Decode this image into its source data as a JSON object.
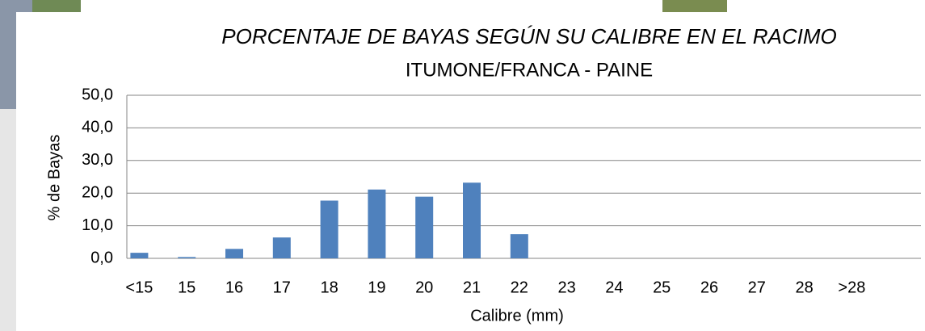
{
  "chart_data": {
    "type": "bar",
    "title": "PORCENTAJE DE BAYAS SEGÚN SU CALIBRE EN EL RACIMO",
    "subtitle": "ITUMONE/FRANCA - PAINE",
    "x_label": "Calibre (mm)",
    "y_label": "% de Bayas",
    "categories": [
      "<15",
      "15",
      "16",
      "17",
      "18",
      "19",
      "20",
      "21",
      "22",
      "23",
      "24",
      "25",
      "26",
      "27",
      "28",
      ">28"
    ],
    "values": [
      1.7,
      0.4,
      2.9,
      6.4,
      17.7,
      21.1,
      18.9,
      23.2,
      7.4,
      0,
      0,
      0,
      0,
      0,
      0,
      0
    ],
    "color": "#4f81bd",
    "ylim": [
      0,
      50
    ],
    "yticks": [
      {
        "value": 0,
        "label": "0,0"
      },
      {
        "value": 10,
        "label": "10,0"
      },
      {
        "value": 20,
        "label": "20,0"
      },
      {
        "value": 30,
        "label": "30,0"
      },
      {
        "value": 40,
        "label": "40,0"
      },
      {
        "value": 50,
        "label": "50,0"
      }
    ],
    "grid": true
  }
}
